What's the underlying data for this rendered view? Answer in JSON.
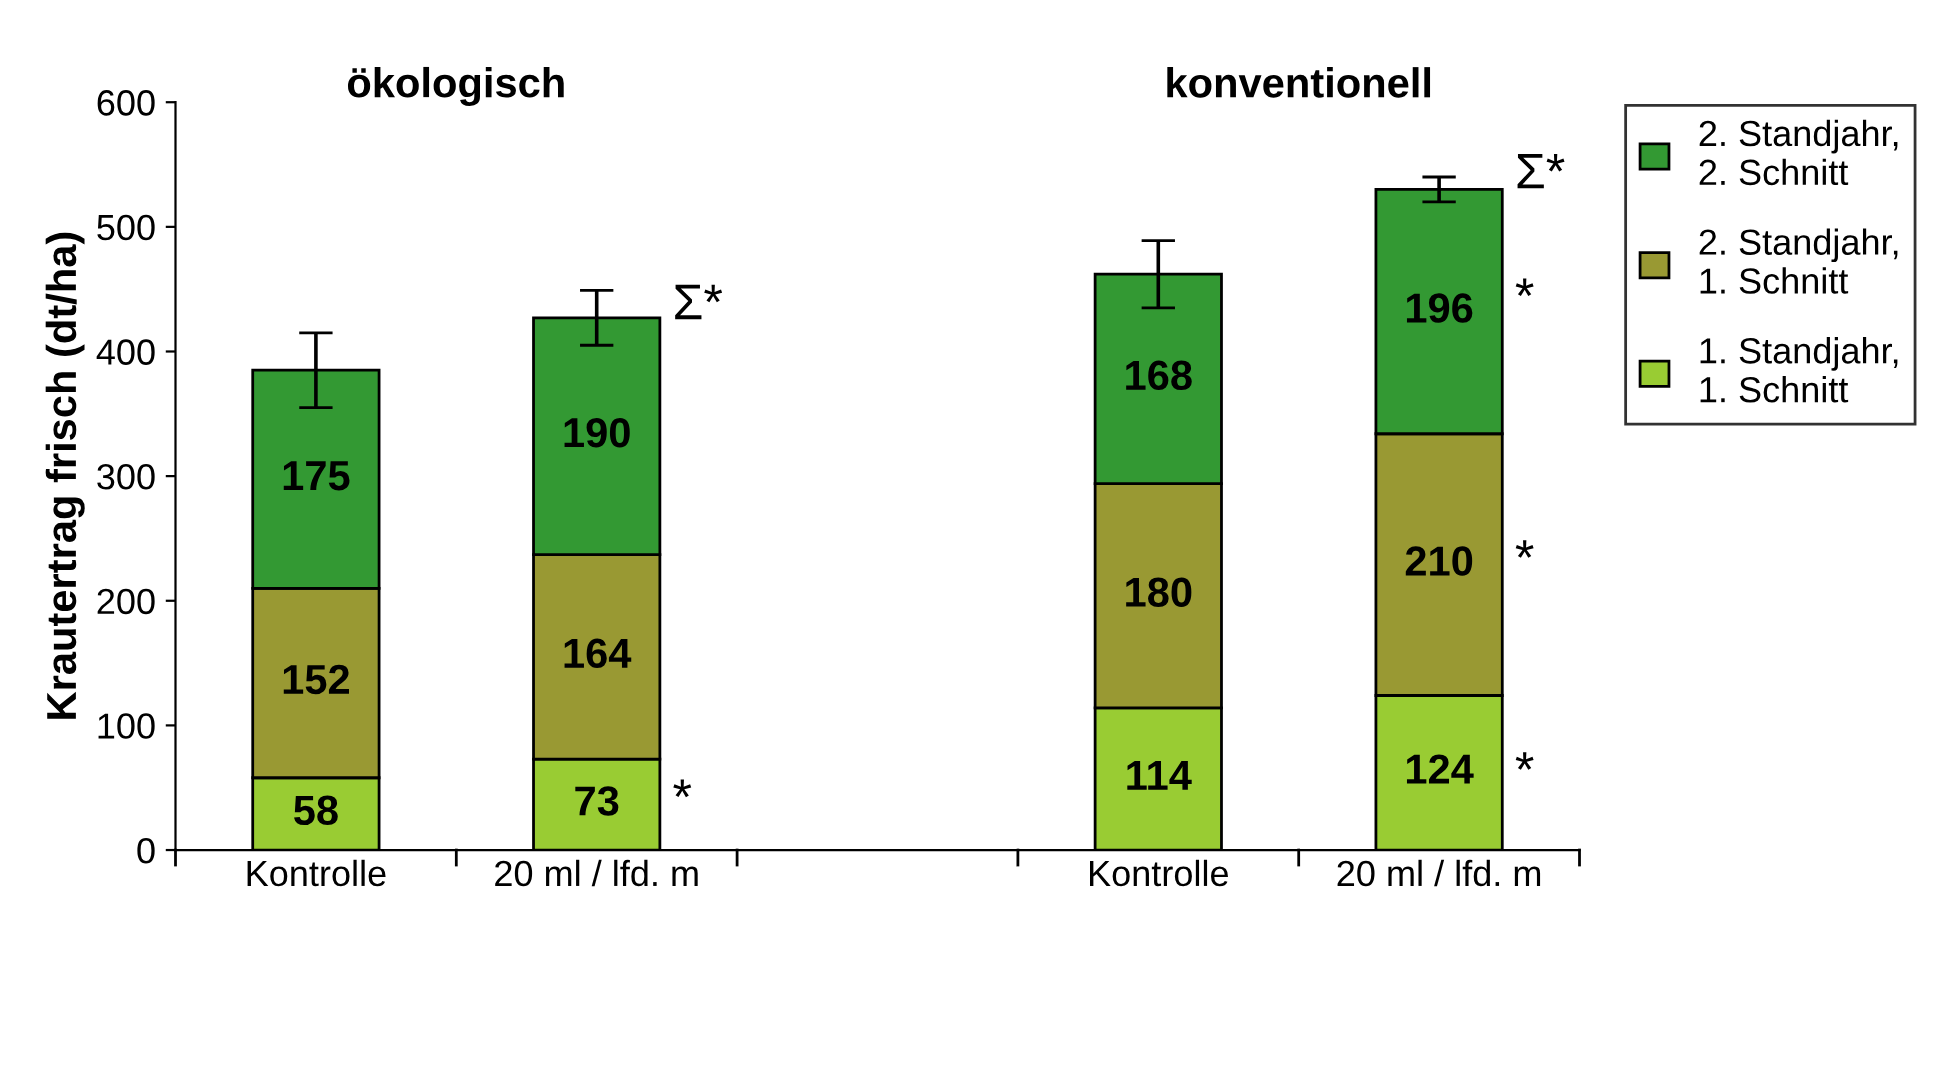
{
  "chart_data": {
    "type": "bar",
    "stacked": true,
    "ylabel": "Krautertrag frisch (dt/ha)",
    "categories": [
      "Kontrolle",
      "20 ml / lfd. m",
      null,
      "Kontrolle",
      "20 ml / lfd. m"
    ],
    "series": [
      {
        "name": "1. Standjahr, 1. Schnitt",
        "color": "#99cc33",
        "values": [
          58,
          73,
          null,
          114,
          124
        ]
      },
      {
        "name": "2. Standjahr, 1. Schnitt",
        "color": "#999933",
        "values": [
          152,
          164,
          null,
          180,
          210
        ]
      },
      {
        "name": "2. Standjahr, 2. Schnitt",
        "color": "#339933",
        "values": [
          175,
          190,
          null,
          168,
          196
        ],
        "errors": [
          30,
          22,
          null,
          27,
          10
        ]
      }
    ],
    "data_labels": true,
    "ylim": [
      0,
      600
    ],
    "yticks": [
      0,
      100,
      200,
      300,
      400,
      500,
      600
    ],
    "grid": false,
    "legend": "right",
    "annotations": [
      "ökologisch",
      "konventionell",
      "Σ*",
      "*",
      "Σ*",
      "*",
      "*",
      "*"
    ]
  }
}
